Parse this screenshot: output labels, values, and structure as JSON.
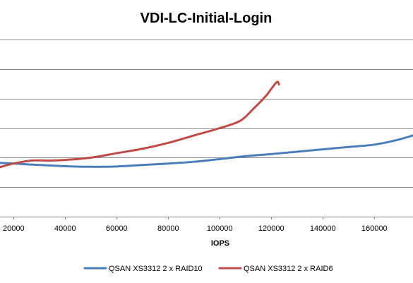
{
  "chart_data": {
    "type": "line",
    "title": "VDI-LC-Initial-Login",
    "xlabel": "IOPS",
    "ylabel": "",
    "x_ticks": [
      20000,
      40000,
      60000,
      80000,
      100000,
      120000,
      140000,
      160000
    ],
    "x_tick_labels": [
      "20000",
      "40000",
      "60000",
      "80000",
      "100000",
      "120000",
      "140000",
      "160000"
    ],
    "xlim": [
      14700,
      175000
    ],
    "ylim": [
      0,
      6
    ],
    "grid": "horizontal",
    "legend_position": "bottom",
    "series": [
      {
        "name": "QSAN XS3312 2 x RAID10",
        "color": "#4a7ebb",
        "points": [
          [
            14700,
            1.82
          ],
          [
            20000,
            1.8
          ],
          [
            30000,
            1.75
          ],
          [
            40000,
            1.71
          ],
          [
            50000,
            1.69
          ],
          [
            60000,
            1.7
          ],
          [
            70000,
            1.75
          ],
          [
            80000,
            1.8
          ],
          [
            90000,
            1.86
          ],
          [
            100000,
            1.95
          ],
          [
            110000,
            2.05
          ],
          [
            120000,
            2.12
          ],
          [
            130000,
            2.2
          ],
          [
            140000,
            2.28
          ],
          [
            150000,
            2.36
          ],
          [
            160000,
            2.44
          ],
          [
            168000,
            2.58
          ],
          [
            175000,
            2.75
          ]
        ]
      },
      {
        "name": "QSAN XS3312 2 x RAID6",
        "color": "#be4b48",
        "points": [
          [
            14700,
            1.68
          ],
          [
            20000,
            1.8
          ],
          [
            27000,
            1.9
          ],
          [
            34000,
            1.9
          ],
          [
            40000,
            1.92
          ],
          [
            50000,
            2.0
          ],
          [
            60000,
            2.15
          ],
          [
            70000,
            2.3
          ],
          [
            80000,
            2.5
          ],
          [
            90000,
            2.75
          ],
          [
            100000,
            3.0
          ],
          [
            108000,
            3.25
          ],
          [
            113000,
            3.65
          ],
          [
            118000,
            4.1
          ],
          [
            122000,
            4.55
          ],
          [
            123000,
            4.48
          ]
        ]
      }
    ]
  }
}
